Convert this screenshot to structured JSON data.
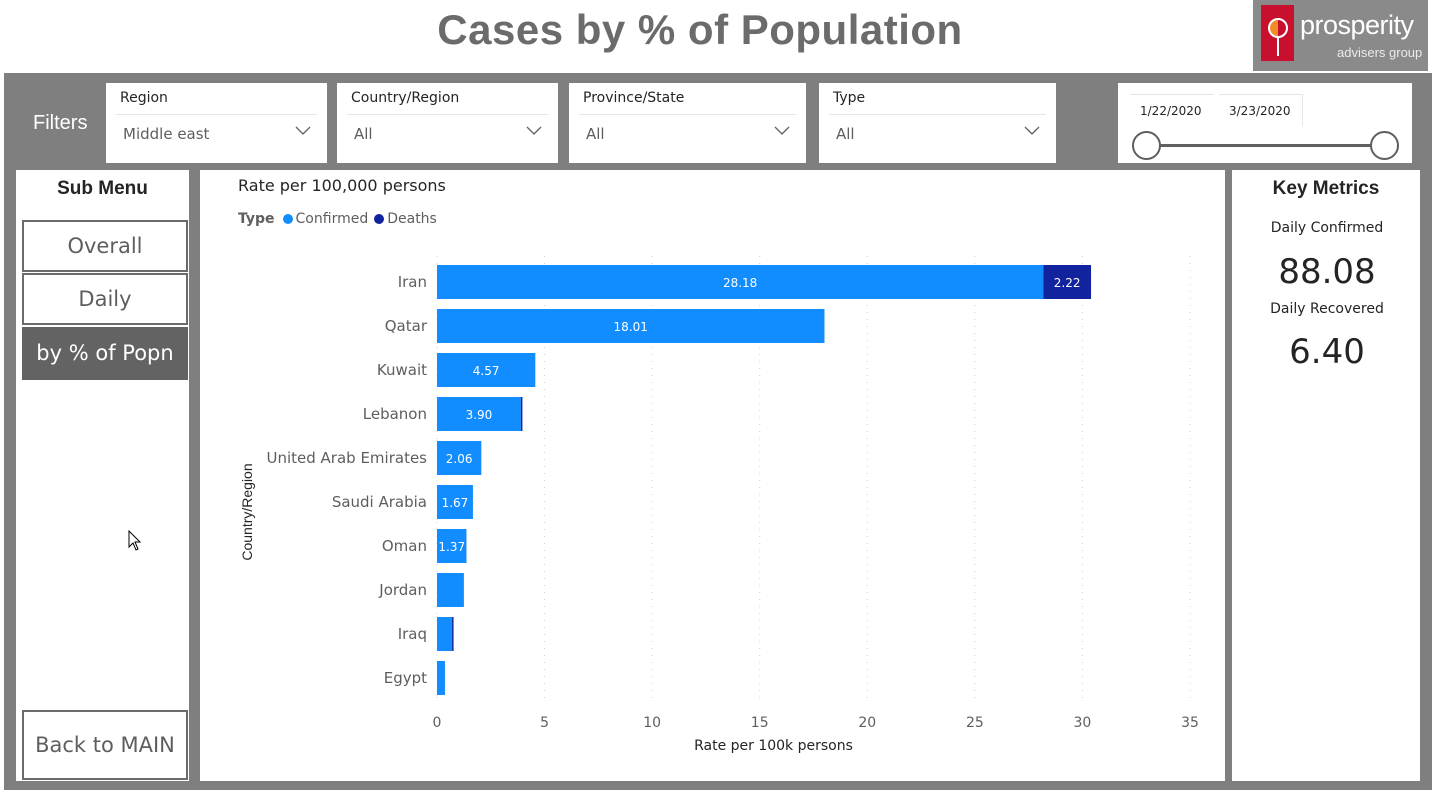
{
  "header": {
    "title": "Cases by % of Population",
    "logo_name": "prosperity",
    "logo_subtitle": "advisers group"
  },
  "filters": {
    "label": "Filters",
    "slicers": [
      {
        "title": "Region",
        "value": "Middle east"
      },
      {
        "title": "Country/Region",
        "value": "All"
      },
      {
        "title": "Province/State",
        "value": "All"
      },
      {
        "title": "Type",
        "value": "All"
      }
    ],
    "date_range": {
      "start": "1/22/2020",
      "end": "3/23/2020"
    }
  },
  "submenu": {
    "title": "Sub Menu",
    "items": [
      {
        "label": "Overall",
        "active": false
      },
      {
        "label": "Daily",
        "active": false
      },
      {
        "label": "by % of Popn",
        "active": true
      }
    ],
    "back_label": "Back to MAIN"
  },
  "metrics": {
    "title": "Key Metrics",
    "daily_confirmed_label": "Daily Confirmed",
    "daily_confirmed_value": "88.08",
    "daily_recovered_label": "Daily Recovered",
    "daily_recovered_value": "6.40"
  },
  "colors": {
    "confirmed": "#118dff",
    "deaths": "#12239e",
    "panel_grey": "#7f7f7f",
    "active_menu": "#636363"
  },
  "chart_data": {
    "type": "bar",
    "orientation": "horizontal",
    "stacked": true,
    "title": "Rate per 100,000 persons",
    "legend_title": "Type",
    "legend_position": "top-left",
    "xlabel": "Rate per 100k persons",
    "ylabel": "Country/Region",
    "xlim": [
      0,
      35
    ],
    "xticks": [
      0,
      5,
      10,
      15,
      20,
      25,
      30,
      35
    ],
    "grid": true,
    "categories": [
      "Iran",
      "Qatar",
      "Kuwait",
      "Lebanon",
      "United Arab Emirates",
      "Saudi Arabia",
      "Oman",
      "Jordan",
      "Iraq",
      "Egypt"
    ],
    "series": [
      {
        "name": "Confirmed",
        "values": [
          28.18,
          18.01,
          4.57,
          3.9,
          2.06,
          1.67,
          1.37,
          1.25,
          0.7,
          0.37
        ],
        "labels": [
          "28.18",
          "18.01",
          "4.57",
          "3.90",
          "2.06",
          "1.67",
          "1.37",
          "",
          "",
          ""
        ]
      },
      {
        "name": "Deaths",
        "values": [
          2.22,
          0,
          0,
          0.07,
          0,
          0,
          0,
          0,
          0.05,
          0
        ],
        "labels": [
          "2.22",
          "",
          "",
          "",
          "",
          "",
          "",
          "",
          "",
          ""
        ]
      }
    ]
  }
}
